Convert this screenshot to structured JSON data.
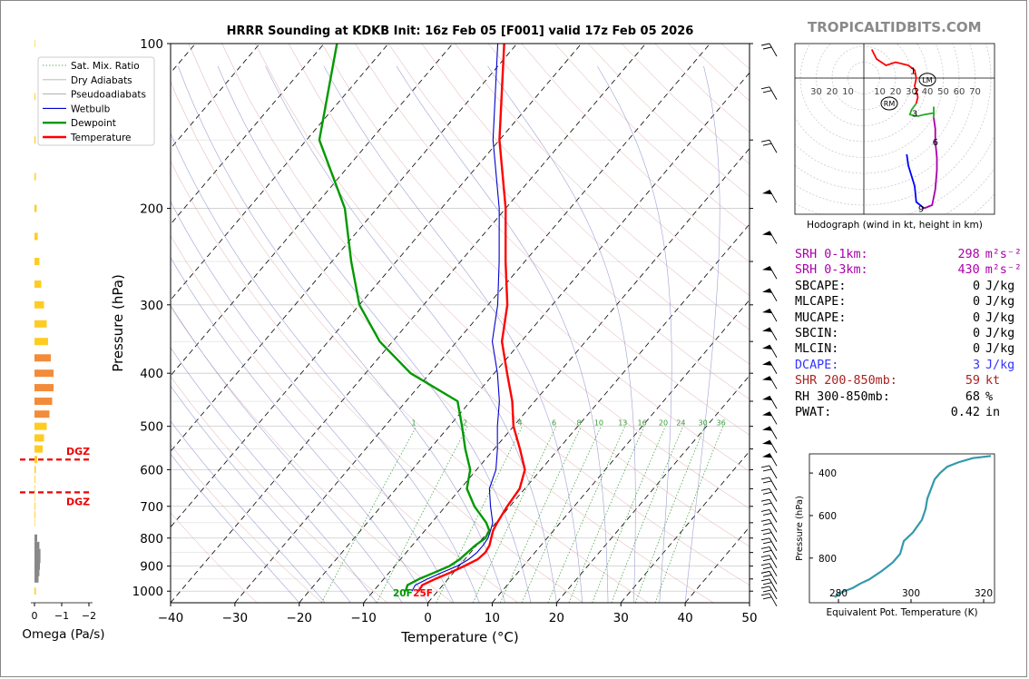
{
  "brand": "TROPICALTIDBITS.COM",
  "title": "HRRR Sounding at KDKB Init: 16z Feb 05 [F001] valid 17z Feb 05 2026",
  "colors": {
    "temperature": "#ff0000",
    "dewpoint": "#009900",
    "wetbulb": "#0000cc",
    "dry": "#b0b0b0",
    "moist": "#8888cc",
    "mixing": "#339933",
    "hodo_red": "#ff0000",
    "hodo_green": "#22aa22",
    "hodo_magenta": "#aa00aa",
    "hodo_blue": "#0000ff",
    "theta_e": "#3399aa",
    "srh": "#aa00aa",
    "dcape": "#3333ff",
    "shr": "#aa2222",
    "omega_pos": "#ffcc22",
    "omega_neg": "#888888"
  },
  "chart_data": [
    {
      "type": "line",
      "name": "skewt",
      "xlabel": "Temperature (°C)",
      "ylabel": "Pressure (hPa)",
      "xlim": [
        -40,
        50
      ],
      "ylim": [
        1050,
        100
      ],
      "x_ticks": [
        "−40",
        "−30",
        "−20",
        "−10",
        "0",
        "10",
        "20",
        "30",
        "40",
        "50"
      ],
      "y_ticks": [
        "100",
        "200",
        "300",
        "400",
        "500",
        "600",
        "700",
        "800",
        "900",
        "1000"
      ],
      "legend": [
        "Sat. Mix. Ratio",
        "Dry Adiabats",
        "Pseudoadiabats",
        "Wetbulb",
        "Dewpoint",
        "Temperature"
      ],
      "legend_position": "top-left",
      "mixing_ratio_labels": [
        "1",
        "2",
        "4",
        "6",
        "8",
        "10",
        "13",
        "16",
        "20",
        "24",
        "30",
        "36"
      ],
      "surface_labels": {
        "dewpoint": "20F",
        "temperature": "25F"
      },
      "series": [
        {
          "name": "Temperature",
          "points": [
            [
              1000,
              -3.0
            ],
            [
              975,
              -3.2
            ],
            [
              950,
              -2.0
            ],
            [
              925,
              -0.5
            ],
            [
              900,
              0.8
            ],
            [
              875,
              2.0
            ],
            [
              850,
              2.3
            ],
            [
              825,
              2.0
            ],
            [
              800,
              1.3
            ],
            [
              775,
              0.6
            ],
            [
              750,
              0.2
            ],
            [
              700,
              -0.4
            ],
            [
              650,
              -0.8
            ],
            [
              600,
              -2.5
            ],
            [
              550,
              -6.0
            ],
            [
              500,
              -10.0
            ],
            [
              450,
              -13.5
            ],
            [
              400,
              -18.0
            ],
            [
              350,
              -23.0
            ],
            [
              300,
              -27.0
            ],
            [
              250,
              -33.0
            ],
            [
              200,
              -40.0
            ],
            [
              150,
              -50.0
            ],
            [
              100,
              -62.0
            ]
          ]
        },
        {
          "name": "Dewpoint",
          "points": [
            [
              1000,
              -5.0
            ],
            [
              975,
              -5.5
            ],
            [
              950,
              -4.5
            ],
            [
              925,
              -3.0
            ],
            [
              900,
              -1.5
            ],
            [
              875,
              -0.8
            ],
            [
              850,
              -0.5
            ],
            [
              825,
              -0.2
            ],
            [
              800,
              0.4
            ],
            [
              775,
              0.0
            ],
            [
              750,
              -1.5
            ],
            [
              700,
              -5.5
            ],
            [
              650,
              -9.0
            ],
            [
              600,
              -11.0
            ],
            [
              550,
              -14.5
            ],
            [
              500,
              -18.0
            ],
            [
              450,
              -22.0
            ],
            [
              400,
              -33.0
            ],
            [
              350,
              -42.0
            ],
            [
              300,
              -50.0
            ],
            [
              250,
              -57.0
            ],
            [
              200,
              -65.0
            ],
            [
              150,
              -78.0
            ],
            [
              100,
              -88.0
            ]
          ]
        },
        {
          "name": "Wetbulb",
          "points": [
            [
              1000,
              -4.0
            ],
            [
              975,
              -4.3
            ],
            [
              950,
              -3.2
            ],
            [
              925,
              -1.8
            ],
            [
              900,
              -0.3
            ],
            [
              875,
              0.6
            ],
            [
              850,
              1.0
            ],
            [
              825,
              1.0
            ],
            [
              800,
              0.8
            ],
            [
              775,
              0.2
            ],
            [
              750,
              -0.5
            ],
            [
              700,
              -3.0
            ],
            [
              650,
              -5.5
            ],
            [
              600,
              -7.0
            ],
            [
              550,
              -9.5
            ],
            [
              500,
              -12.5
            ],
            [
              450,
              -15.5
            ],
            [
              400,
              -19.5
            ],
            [
              350,
              -24.5
            ],
            [
              300,
              -28.5
            ],
            [
              250,
              -34.0
            ],
            [
              200,
              -41.0
            ],
            [
              150,
              -51.0
            ],
            [
              100,
              -63.0
            ]
          ]
        }
      ],
      "dgz_label": "DGZ",
      "dgz_pressures": [
        575,
        660
      ]
    },
    {
      "type": "bar",
      "name": "omega",
      "xlabel": "Omega (Pa/s)",
      "x_ticks": [
        "0",
        "−1",
        "−2"
      ],
      "xlim": [
        0,
        -2
      ],
      "levels": [
        1000,
        975,
        950,
        925,
        900,
        875,
        850,
        825,
        800,
        775,
        750,
        725,
        700,
        675,
        650,
        625,
        600,
        575,
        550,
        525,
        500,
        475,
        450,
        425,
        400,
        375,
        350,
        325,
        300,
        275,
        250,
        225,
        200,
        175,
        150,
        125,
        100
      ],
      "values": [
        -0.05,
        0.0,
        0.15,
        0.18,
        0.2,
        0.22,
        0.22,
        0.18,
        0.1,
        0.0,
        -0.02,
        -0.03,
        -0.03,
        -0.02,
        -0.02,
        -0.03,
        -0.05,
        -0.1,
        -0.3,
        -0.35,
        -0.45,
        -0.55,
        -0.65,
        -0.7,
        -0.7,
        -0.6,
        -0.5,
        -0.45,
        -0.35,
        -0.25,
        -0.18,
        -0.12,
        -0.08,
        -0.05,
        -0.04,
        -0.03,
        -0.02
      ]
    },
    {
      "type": "line",
      "name": "hodograph",
      "xlabel": "Hodograph (wind in kt, height in km)",
      "ring_labels": [
        "30",
        "20",
        "10",
        "10",
        "20",
        "30",
        "40",
        "50",
        "60",
        "70"
      ],
      "height_labels": [
        "1",
        "2",
        "3",
        "6",
        "9"
      ],
      "markers": [
        "LM",
        "RM"
      ],
      "segments": [
        {
          "color": "red",
          "points": [
            [
              5,
              -18
            ],
            [
              8,
              -12
            ],
            [
              14,
              -8
            ],
            [
              20,
              -10
            ],
            [
              28,
              -8
            ],
            [
              32,
              -5
            ],
            [
              33,
              0
            ],
            [
              32,
              5
            ],
            [
              33,
              8
            ],
            [
              34,
              12
            ],
            [
              33,
              16
            ]
          ]
        },
        {
          "color": "green",
          "points": [
            [
              33,
              16
            ],
            [
              30,
              20
            ],
            [
              29,
              23
            ],
            [
              34,
              24
            ],
            [
              38,
              23
            ],
            [
              44,
              22
            ],
            [
              44,
              18
            ],
            [
              44,
              25
            ]
          ]
        },
        {
          "color": "magenta",
          "points": [
            [
              44,
              25
            ],
            [
              45,
              32
            ],
            [
              45,
              40
            ],
            [
              46,
              50
            ],
            [
              46,
              58
            ],
            [
              45,
              70
            ],
            [
              43,
              80
            ],
            [
              38,
              82
            ]
          ]
        },
        {
          "color": "blue",
          "points": [
            [
              38,
              82
            ],
            [
              33,
              78
            ],
            [
              32,
              68
            ],
            [
              28,
              55
            ],
            [
              27,
              48
            ]
          ]
        }
      ],
      "lm": [
        40,
        1
      ],
      "rm": [
        16,
        16
      ]
    },
    {
      "type": "line",
      "name": "theta_e",
      "xlabel": "Equivalent Pot. Temperature (K)",
      "ylabel": "Pressure (hPa)",
      "x_ticks": [
        "280",
        "300",
        "320"
      ],
      "y_ticks": [
        "400",
        "600",
        "800"
      ],
      "xlim": [
        272,
        323
      ],
      "ylim": [
        1010,
        310
      ],
      "points": [
        [
          985,
          279
        ],
        [
          975,
          279.5
        ],
        [
          960,
          281
        ],
        [
          940,
          284
        ],
        [
          920,
          286
        ],
        [
          900,
          288.5
        ],
        [
          860,
          292
        ],
        [
          820,
          295
        ],
        [
          780,
          297
        ],
        [
          720,
          298
        ],
        [
          680,
          300.5
        ],
        [
          620,
          303
        ],
        [
          570,
          304
        ],
        [
          520,
          304.5
        ],
        [
          475,
          305.5
        ],
        [
          430,
          306.5
        ],
        [
          400,
          308
        ],
        [
          370,
          310
        ],
        [
          350,
          313
        ],
        [
          330,
          317
        ],
        [
          320,
          322
        ]
      ]
    }
  ],
  "stats": [
    {
      "label": "SRH 0-1km:",
      "value": "298",
      "unit": "m²s⁻²",
      "color": "#aa00aa"
    },
    {
      "label": "SRH 0-3km:",
      "value": "430",
      "unit": "m²s⁻²",
      "color": "#aa00aa"
    },
    {
      "label": "SBCAPE:",
      "value": "0",
      "unit": "J/kg",
      "color": "#000000"
    },
    {
      "label": "MLCAPE:",
      "value": "0",
      "unit": "J/kg",
      "color": "#000000"
    },
    {
      "label": "MUCAPE:",
      "value": "0",
      "unit": "J/kg",
      "color": "#000000"
    },
    {
      "label": "SBCIN:",
      "value": "0",
      "unit": "J/kg",
      "color": "#000000"
    },
    {
      "label": "MLCIN:",
      "value": "0",
      "unit": "J/kg",
      "color": "#000000"
    },
    {
      "label": "DCAPE:",
      "value": "3",
      "unit": "J/kg",
      "color": "#3333ff"
    },
    {
      "label": "SHR 200-850mb:",
      "value": "59",
      "unit": "kt",
      "color": "#aa2222"
    },
    {
      "label": "RH 300-850mb:",
      "value": "68",
      "unit": "%",
      "color": "#000000"
    },
    {
      "label": "PWAT:",
      "value": "0.42",
      "unit": "in",
      "color": "#000000"
    }
  ]
}
